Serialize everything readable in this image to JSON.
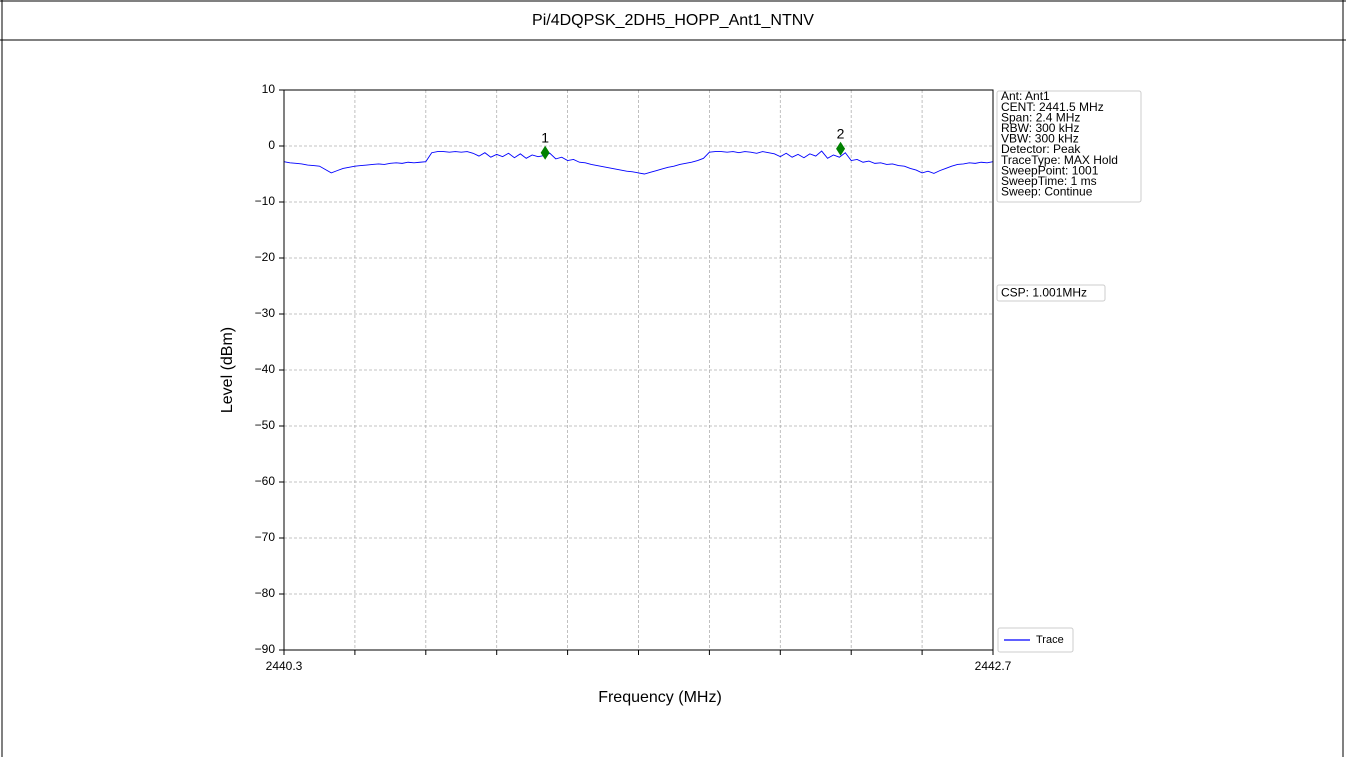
{
  "chart_data": {
    "type": "line",
    "title": "Pi/4DQPSK_2DH5_HOPP_Ant1_NTNV",
    "xlabel": "Frequency (MHz)",
    "ylabel": "Level (dBm)",
    "xlim": [
      2440.3,
      2442.7
    ],
    "xticks": [
      2440.3,
      2442.7
    ],
    "xminor_ticks": [
      2440.54,
      2440.78,
      2441.02,
      2441.26,
      2441.5,
      2441.74,
      2441.98,
      2442.22,
      2442.46
    ],
    "ylim": [
      -90,
      10
    ],
    "yticks": [
      {
        "value": -90,
        "label": "−90"
      },
      {
        "value": -80,
        "label": "−80"
      },
      {
        "value": -70,
        "label": "−70"
      },
      {
        "value": -60,
        "label": "−60"
      },
      {
        "value": -50,
        "label": "−50"
      },
      {
        "value": -40,
        "label": "−40"
      },
      {
        "value": -30,
        "label": "−30"
      },
      {
        "value": -20,
        "label": "−20"
      },
      {
        "value": -10,
        "label": "−10"
      },
      0,
      10
    ],
    "grid": true,
    "legend": "lower right",
    "x": [
      2440.3,
      2440.32,
      2440.34,
      2440.36,
      2440.38,
      2440.4,
      2440.42,
      2440.44,
      2440.46,
      2440.48,
      2440.5,
      2440.52,
      2440.54,
      2440.56,
      2440.58,
      2440.6,
      2440.62,
      2440.64,
      2440.66,
      2440.68,
      2440.7,
      2440.72,
      2440.74,
      2440.76,
      2440.78,
      2440.8,
      2440.82,
      2440.84,
      2440.86,
      2440.88,
      2440.9,
      2440.92,
      2440.94,
      2440.96,
      2440.98,
      2441.0,
      2441.02,
      2441.04,
      2441.06,
      2441.08,
      2441.1,
      2441.12,
      2441.14,
      2441.16,
      2441.18,
      2441.2,
      2441.22,
      2441.24,
      2441.26,
      2441.28,
      2441.3,
      2441.32,
      2441.34,
      2441.36,
      2441.38,
      2441.4,
      2441.42,
      2441.44,
      2441.46,
      2441.48,
      2441.5,
      2441.52,
      2441.54,
      2441.56,
      2441.58,
      2441.6,
      2441.62,
      2441.64,
      2441.66,
      2441.68,
      2441.7,
      2441.72,
      2441.74,
      2441.76,
      2441.78,
      2441.8,
      2441.82,
      2441.84,
      2441.86,
      2441.88,
      2441.9,
      2441.92,
      2441.94,
      2441.96,
      2441.98,
      2442.0,
      2442.02,
      2442.04,
      2442.06,
      2442.08,
      2442.1,
      2442.12,
      2442.14,
      2442.16,
      2442.18,
      2442.2,
      2442.22,
      2442.24,
      2442.26,
      2442.28,
      2442.3,
      2442.32,
      2442.34,
      2442.36,
      2442.38,
      2442.4,
      2442.42,
      2442.44,
      2442.46,
      2442.48,
      2442.5,
      2442.52,
      2442.54,
      2442.56,
      2442.58,
      2442.6,
      2442.62,
      2442.64,
      2442.66,
      2442.68,
      2442.7
    ],
    "series": [
      {
        "name": "Trace",
        "color": "#0000ff",
        "values": [
          -2.8,
          -3.0,
          -3.1,
          -3.2,
          -3.4,
          -3.5,
          -3.6,
          -4.2,
          -4.8,
          -4.4,
          -4.0,
          -3.8,
          -3.6,
          -3.5,
          -3.4,
          -3.3,
          -3.2,
          -3.3,
          -3.1,
          -3.0,
          -3.1,
          -2.9,
          -3.0,
          -2.9,
          -2.8,
          -1.2,
          -1.0,
          -1.0,
          -1.1,
          -1.0,
          -1.1,
          -1.0,
          -1.3,
          -1.8,
          -1.2,
          -2.0,
          -1.5,
          -1.9,
          -1.3,
          -2.1,
          -1.4,
          -2.2,
          -1.6,
          -1.9,
          -1.7,
          -1.3,
          -2.3,
          -2.0,
          -2.6,
          -2.4,
          -2.9,
          -3.0,
          -3.3,
          -3.5,
          -3.7,
          -3.9,
          -4.1,
          -4.3,
          -4.5,
          -4.6,
          -4.8,
          -5.0,
          -4.7,
          -4.4,
          -4.1,
          -3.8,
          -3.6,
          -3.3,
          -3.1,
          -2.9,
          -2.6,
          -2.2,
          -1.1,
          -1.0,
          -1.0,
          -1.1,
          -1.0,
          -1.2,
          -1.0,
          -1.1,
          -1.3,
          -1.0,
          -1.2,
          -1.4,
          -1.9,
          -1.3,
          -2.0,
          -1.5,
          -2.1,
          -1.4,
          -1.8,
          -0.9,
          -2.2,
          -1.6,
          -2.0,
          -1.2,
          -2.6,
          -2.4,
          -2.9,
          -2.7,
          -3.1,
          -3.0,
          -3.3,
          -3.2,
          -3.5,
          -3.6,
          -4.0,
          -4.3,
          -4.8,
          -4.5,
          -4.9,
          -4.4,
          -4.0,
          -3.6,
          -3.3,
          -3.2,
          -3.0,
          -3.1,
          -2.9,
          -3.0,
          -2.8
        ]
      }
    ],
    "markers": [
      {
        "label": "1",
        "x": 2441.184,
        "value": -1.2,
        "color": "#008000"
      },
      {
        "label": "2",
        "x": 2442.184,
        "value": -0.5,
        "color": "#008000"
      }
    ],
    "info": [
      "Ant: Ant1",
      "CENT: 2441.5 MHz",
      "Span: 2.4 MHz",
      "RBW: 300 kHz",
      "VBW: 300 kHz",
      "Detector: Peak",
      "TraceType: MAX Hold",
      "SweepPoint: 1001",
      "SweepTime: 1 ms",
      "Sweep: Continue"
    ],
    "csp": "CSP: 1.001MHz"
  }
}
